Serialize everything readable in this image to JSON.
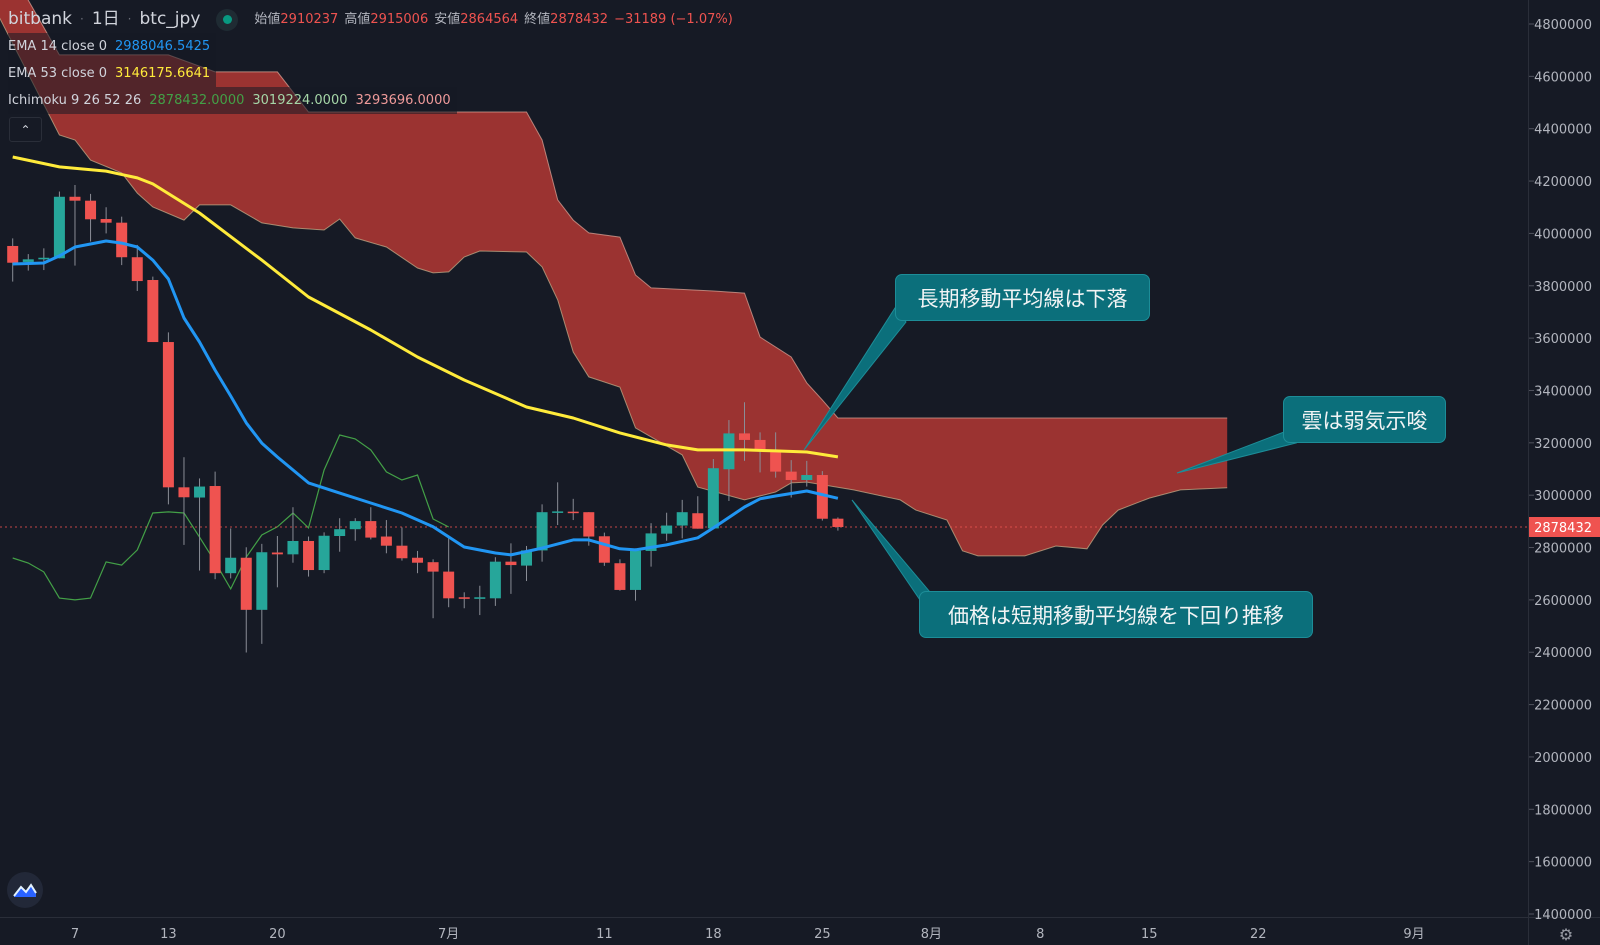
{
  "header": {
    "exchange": "bitbank",
    "interval": "1日",
    "symbol": "btc_jpy",
    "ohlc": [
      {
        "label": "始値",
        "value": "2910237"
      },
      {
        "label": "高値",
        "value": "2915006"
      },
      {
        "label": "安値",
        "value": "2864564"
      },
      {
        "label": "終値",
        "value": "2878432"
      }
    ],
    "change": "−31189 (−1.07%)"
  },
  "indicators": {
    "ema14": {
      "label": "EMA 14 close 0",
      "value": "2988046.5425",
      "color": "#2196f3"
    },
    "ema53": {
      "label": "EMA 53 close 0",
      "value": "3146175.6641",
      "color": "#ffeb3b"
    },
    "ichimoku": {
      "label": "Ichimoku 9 26 52 26",
      "values": [
        "2878432.0000",
        "3019224.0000",
        "3293696.0000"
      ],
      "colors": [
        "#43a047",
        "#a5d6a7",
        "#ef9a9a"
      ]
    }
  },
  "collapse_icon": "chevron-up-icon",
  "annotations": [
    {
      "text": "長期移動平均線は下落"
    },
    {
      "text": "雲は弱気示唆"
    },
    {
      "text": "価格は短期移動平均線を下回り推移"
    }
  ],
  "colors": {
    "up": "#26a69a",
    "down": "#ef5350",
    "cloud": "#9b3331",
    "annotation": "#0b6f7b",
    "background": "#161a25"
  },
  "chart_data": {
    "type": "candlestick",
    "ylim": [
      1400000,
      4800000
    ],
    "y_ticks": [
      "4800000",
      "4600000",
      "4400000",
      "4200000",
      "4000000",
      "3800000",
      "3600000",
      "3400000",
      "3200000",
      "3000000",
      "2800000",
      "2600000",
      "2400000",
      "2200000",
      "2000000",
      "1800000",
      "1600000",
      "1400000"
    ],
    "x_ticks": [
      {
        "label": "7",
        "date": "06-07"
      },
      {
        "label": "13",
        "date": "06-13"
      },
      {
        "label": "20",
        "date": "06-20"
      },
      {
        "label": "7月",
        "date": "07-01"
      },
      {
        "label": "11",
        "date": "07-11"
      },
      {
        "label": "18",
        "date": "07-18"
      },
      {
        "label": "25",
        "date": "07-25"
      },
      {
        "label": "8月",
        "date": "08-01"
      },
      {
        "label": "8",
        "date": "08-08"
      },
      {
        "label": "15",
        "date": "08-15"
      },
      {
        "label": "22",
        "date": "08-22"
      },
      {
        "label": "9月",
        "date": "09-01"
      }
    ],
    "last_price": "2878432",
    "candles": [
      [
        "06-03",
        3952000,
        3981000,
        3816000,
        3888000
      ],
      [
        "06-04",
        3891000,
        3921000,
        3858000,
        3901000
      ],
      [
        "06-05",
        3901000,
        3943000,
        3860000,
        3907000
      ],
      [
        "06-06",
        3905000,
        4160000,
        3905000,
        4140000
      ],
      [
        "06-07",
        4140000,
        4185000,
        3877000,
        4125000
      ],
      [
        "06-08",
        4125000,
        4151000,
        3969000,
        4054000
      ],
      [
        "06-09",
        4055000,
        4100000,
        4000000,
        4041000
      ],
      [
        "06-10",
        4041000,
        4064000,
        3879000,
        3909000
      ],
      [
        "06-11",
        3909000,
        3956000,
        3780000,
        3818000
      ],
      [
        "06-12",
        3822000,
        3835000,
        3585000,
        3585000
      ],
      [
        "06-13",
        3585000,
        3622000,
        2965000,
        3030000
      ],
      [
        "06-14",
        3030000,
        3145000,
        2810000,
        2992000
      ],
      [
        "06-15",
        2991000,
        3064000,
        2712000,
        3033000
      ],
      [
        "06-16",
        3035000,
        3090000,
        2679000,
        2702000
      ],
      [
        "06-17",
        2702000,
        2873000,
        2682000,
        2761000
      ],
      [
        "06-18",
        2761000,
        2801000,
        2399000,
        2562000
      ],
      [
        "06-19",
        2562000,
        2814000,
        2432000,
        2782000
      ],
      [
        "06-20",
        2781000,
        2844000,
        2648000,
        2774000
      ],
      [
        "06-21",
        2774000,
        2954000,
        2742000,
        2825000
      ],
      [
        "06-22",
        2825000,
        2842000,
        2689000,
        2714000
      ],
      [
        "06-23",
        2714000,
        2858000,
        2702000,
        2845000
      ],
      [
        "06-24",
        2844000,
        2912000,
        2784000,
        2870000
      ],
      [
        "06-25",
        2870000,
        2912000,
        2826000,
        2901000
      ],
      [
        "06-26",
        2901000,
        2954000,
        2831000,
        2838000
      ],
      [
        "06-27",
        2842000,
        2905000,
        2778000,
        2807000
      ],
      [
        "06-28",
        2807000,
        2877000,
        2750000,
        2759000
      ],
      [
        "06-29",
        2761000,
        2787000,
        2702000,
        2742000
      ],
      [
        "06-30",
        2744000,
        2755000,
        2530000,
        2708000
      ],
      [
        "07-01",
        2708000,
        2835000,
        2572000,
        2606000
      ],
      [
        "07-02",
        2610000,
        2629000,
        2568000,
        2604000
      ],
      [
        "07-03",
        2604000,
        2654000,
        2542000,
        2610000
      ],
      [
        "07-04",
        2606000,
        2763000,
        2577000,
        2746000
      ],
      [
        "07-05",
        2746000,
        2816000,
        2623000,
        2733000
      ],
      [
        "07-06",
        2731000,
        2806000,
        2672000,
        2789000
      ],
      [
        "07-07",
        2789000,
        2965000,
        2746000,
        2935000
      ],
      [
        "07-08",
        2933000,
        3049000,
        2886000,
        2938000
      ],
      [
        "07-09",
        2937000,
        2986000,
        2905000,
        2932000
      ],
      [
        "07-10",
        2935000,
        2935000,
        2807000,
        2842000
      ],
      [
        "07-11",
        2843000,
        2857000,
        2730000,
        2742000
      ],
      [
        "07-12",
        2740000,
        2755000,
        2635000,
        2638000
      ],
      [
        "07-13",
        2638000,
        2797000,
        2597000,
        2788000
      ],
      [
        "07-14",
        2787000,
        2893000,
        2727000,
        2854000
      ],
      [
        "07-15",
        2853000,
        2933000,
        2826000,
        2884000
      ],
      [
        "07-16",
        2884000,
        2982000,
        2835000,
        2935000
      ],
      [
        "07-17",
        2931000,
        2996000,
        2872000,
        2872000
      ],
      [
        "07-18",
        2873000,
        3138000,
        2873000,
        3103000
      ],
      [
        "07-19",
        3099000,
        3287000,
        2978000,
        3236000
      ],
      [
        "07-20",
        3236000,
        3355000,
        3131000,
        3211000
      ],
      [
        "07-21",
        3211000,
        3240000,
        3087000,
        3173000
      ],
      [
        "07-22",
        3173000,
        3240000,
        3067000,
        3090000
      ],
      [
        "07-23",
        3090000,
        3134000,
        2991000,
        3058000
      ],
      [
        "07-24",
        3058000,
        3131000,
        3033000,
        3077000
      ],
      [
        "07-25",
        3077000,
        3092000,
        2903000,
        2910000
      ],
      [
        "07-26",
        2910237,
        2915006,
        2864564,
        2878432
      ]
    ],
    "ema14": [
      [
        "06-03",
        3883000
      ],
      [
        "06-05",
        3887000
      ],
      [
        "06-06",
        3914000
      ],
      [
        "06-07",
        3948000
      ],
      [
        "06-09",
        3971000
      ],
      [
        "06-10",
        3963000
      ],
      [
        "06-11",
        3948000
      ],
      [
        "06-12",
        3898000
      ],
      [
        "06-13",
        3826000
      ],
      [
        "06-14",
        3677000
      ],
      [
        "06-15",
        3585000
      ],
      [
        "06-16",
        3478000
      ],
      [
        "06-17",
        3379000
      ],
      [
        "06-18",
        3276000
      ],
      [
        "06-19",
        3199000
      ],
      [
        "06-20",
        3146000
      ],
      [
        "06-22",
        3047000
      ],
      [
        "06-24",
        3008000
      ],
      [
        "06-26",
        2970000
      ],
      [
        "06-28",
        2932000
      ],
      [
        "06-30",
        2879000
      ],
      [
        "07-02",
        2802000
      ],
      [
        "07-04",
        2779000
      ],
      [
        "07-05",
        2772000
      ],
      [
        "07-07",
        2798000
      ],
      [
        "07-09",
        2829000
      ],
      [
        "07-10",
        2829000
      ],
      [
        "07-12",
        2795000
      ],
      [
        "07-13",
        2791000
      ],
      [
        "07-15",
        2810000
      ],
      [
        "07-17",
        2837000
      ],
      [
        "07-18",
        2875000
      ],
      [
        "07-20",
        2955000
      ],
      [
        "07-21",
        2986000
      ],
      [
        "07-22",
        2997000
      ],
      [
        "07-24",
        3016000
      ],
      [
        "07-26",
        2988047
      ]
    ],
    "ema53": [
      [
        "06-03",
        4292000
      ],
      [
        "06-06",
        4254000
      ],
      [
        "06-09",
        4238000
      ],
      [
        "06-11",
        4212000
      ],
      [
        "06-12",
        4189000
      ],
      [
        "06-15",
        4078000
      ],
      [
        "06-19",
        3898000
      ],
      [
        "06-22",
        3757000
      ],
      [
        "06-26",
        3631000
      ],
      [
        "06-29",
        3528000
      ],
      [
        "07-02",
        3440000
      ],
      [
        "07-06",
        3337000
      ],
      [
        "07-09",
        3295000
      ],
      [
        "07-12",
        3238000
      ],
      [
        "07-15",
        3192000
      ],
      [
        "07-17",
        3173000
      ],
      [
        "07-20",
        3173000
      ],
      [
        "07-22",
        3169000
      ],
      [
        "07-24",
        3165000
      ],
      [
        "07-26",
        3146176
      ]
    ],
    "lagging_span": [
      [
        "06-03",
        2760000
      ],
      [
        "06-04",
        2741000
      ],
      [
        "06-05",
        2707000
      ],
      [
        "06-06",
        2607000
      ],
      [
        "06-07",
        2600000
      ],
      [
        "06-08",
        2607000
      ],
      [
        "06-09",
        2745000
      ],
      [
        "06-10",
        2733000
      ],
      [
        "06-11",
        2791000
      ],
      [
        "06-12",
        2932000
      ],
      [
        "06-13",
        2936000
      ],
      [
        "06-14",
        2932000
      ],
      [
        "06-15",
        2840000
      ],
      [
        "06-16",
        2745000
      ],
      [
        "06-17",
        2642000
      ],
      [
        "06-18",
        2764000
      ],
      [
        "06-19",
        2848000
      ],
      [
        "06-20",
        2879000
      ],
      [
        "06-21",
        2932000
      ],
      [
        "06-22",
        2875000
      ],
      [
        "06-23",
        3096000
      ],
      [
        "06-24",
        3230000
      ],
      [
        "06-25",
        3215000
      ],
      [
        "06-26",
        3173000
      ],
      [
        "06-27",
        3089000
      ],
      [
        "06-28",
        3058000
      ],
      [
        "06-29",
        3077000
      ],
      [
        "06-30",
        2909000
      ],
      [
        "07-01",
        2878432
      ]
    ],
    "cloud_upper": [
      [
        "06-02",
        5100000
      ],
      [
        "06-06",
        4682000
      ],
      [
        "06-13",
        4682000
      ],
      [
        "06-16",
        4617000
      ],
      [
        "06-20",
        4617000
      ],
      [
        "06-22",
        4464000
      ],
      [
        "07-06",
        4464000
      ],
      [
        "07-07",
        4357000
      ],
      [
        "07-08",
        4128000
      ],
      [
        "07-09",
        4051000
      ],
      [
        "07-10",
        4002000
      ],
      [
        "07-12",
        3986000
      ],
      [
        "07-13",
        3841000
      ],
      [
        "07-14",
        3792000
      ],
      [
        "07-18",
        3780000
      ],
      [
        "07-20",
        3772000
      ],
      [
        "07-21",
        3604000
      ],
      [
        "07-23",
        3528000
      ],
      [
        "07-24",
        3429000
      ],
      [
        "07-25",
        3364000
      ],
      [
        "07-26",
        3295000
      ],
      [
        "08-20",
        3295000
      ]
    ],
    "cloud_lower": [
      [
        "06-02",
        4842000
      ],
      [
        "06-06",
        4376000
      ],
      [
        "06-07",
        4357000
      ],
      [
        "06-08",
        4280000
      ],
      [
        "06-10",
        4231000
      ],
      [
        "06-11",
        4154000
      ],
      [
        "06-12",
        4101000
      ],
      [
        "06-14",
        4051000
      ],
      [
        "06-15",
        4109000
      ],
      [
        "06-17",
        4109000
      ],
      [
        "06-19",
        4040000
      ],
      [
        "06-21",
        4021000
      ],
      [
        "06-23",
        4013000
      ],
      [
        "06-24",
        4055000
      ],
      [
        "06-25",
        3983000
      ],
      [
        "06-27",
        3948000
      ],
      [
        "06-29",
        3868000
      ],
      [
        "06-30",
        3849000
      ],
      [
        "07-01",
        3853000
      ],
      [
        "07-02",
        3910000
      ],
      [
        "07-03",
        3933000
      ],
      [
        "07-06",
        3929000
      ],
      [
        "07-07",
        3872000
      ],
      [
        "07-08",
        3746000
      ],
      [
        "07-09",
        3547000
      ],
      [
        "07-10",
        3452000
      ],
      [
        "07-12",
        3413000
      ],
      [
        "07-13",
        3257000
      ],
      [
        "07-16",
        3154000
      ],
      [
        "07-17",
        3031000
      ],
      [
        "07-20",
        2982000
      ],
      [
        "07-22",
        3012000
      ],
      [
        "07-23",
        3047000
      ],
      [
        "07-24",
        3050000
      ],
      [
        "07-27",
        3020000
      ],
      [
        "07-30",
        2982000
      ],
      [
        "07-31",
        2943000
      ],
      [
        "08-02",
        2905000
      ],
      [
        "08-03",
        2787000
      ],
      [
        "08-04",
        2768000
      ],
      [
        "08-07",
        2768000
      ],
      [
        "08-09",
        2806000
      ],
      [
        "08-11",
        2795000
      ],
      [
        "08-12",
        2886000
      ],
      [
        "08-13",
        2943000
      ],
      [
        "08-15",
        2989000
      ],
      [
        "08-17",
        3020000
      ],
      [
        "08-20",
        3028000
      ]
    ]
  }
}
